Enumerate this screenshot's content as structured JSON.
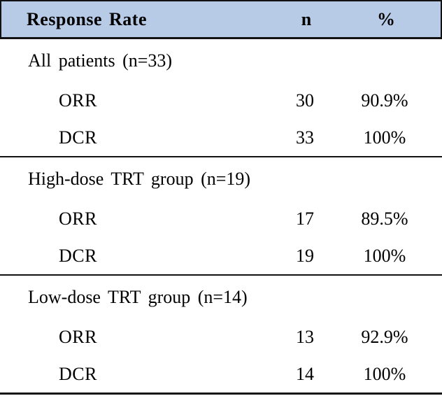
{
  "table": {
    "columns": [
      "Response Rate",
      "n",
      "%"
    ],
    "sections": [
      {
        "label": "All patients (n=33)",
        "rows": [
          {
            "metric": "ORR",
            "n": "30",
            "pct": "90.9%"
          },
          {
            "metric": "DCR",
            "n": "33",
            "pct": "100%"
          }
        ]
      },
      {
        "label": "High-dose TRT group (n=19)",
        "rows": [
          {
            "metric": "ORR",
            "n": "17",
            "pct": "89.5%"
          },
          {
            "metric": "DCR",
            "n": "19",
            "pct": "100%"
          }
        ]
      },
      {
        "label": "Low-dose TRT group (n=14)",
        "rows": [
          {
            "metric": "ORR",
            "n": "13",
            "pct": "92.9%"
          },
          {
            "metric": "DCR",
            "n": "14",
            "pct": "100%"
          }
        ]
      }
    ],
    "colors": {
      "header_bg": "#b7cbe7",
      "border": "#121212",
      "text": "#000000"
    }
  },
  "chart_data": {
    "type": "table",
    "title": "Response Rate",
    "columns": [
      "Response Rate",
      "n",
      "%"
    ],
    "rows": [
      [
        "All patients (n=33)",
        "",
        ""
      ],
      [
        "ORR",
        "30",
        "90.9%"
      ],
      [
        "DCR",
        "33",
        "100%"
      ],
      [
        "High-dose TRT group (n=19)",
        "",
        ""
      ],
      [
        "ORR",
        "17",
        "89.5%"
      ],
      [
        "DCR",
        "19",
        "100%"
      ],
      [
        "Low-dose TRT group (n=14)",
        "",
        ""
      ],
      [
        "ORR",
        "13",
        "92.9%"
      ],
      [
        "DCR",
        "14",
        "100%"
      ]
    ]
  }
}
